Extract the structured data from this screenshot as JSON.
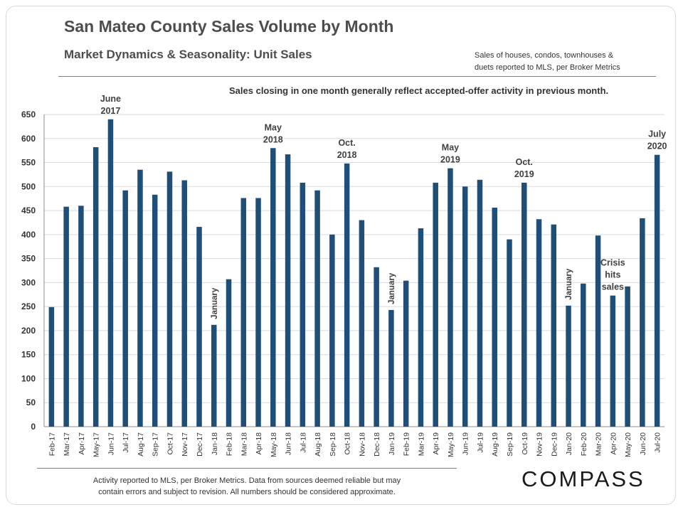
{
  "header": {
    "title": "San Mateo County Sales Volume by Month",
    "subtitle": "Market Dynamics & Seasonality: Unit Sales",
    "source_line1": "Sales of houses, condos, townhouses &",
    "source_line2": "duets reported to MLS, per Broker Metrics"
  },
  "insight_text": "Sales closing in one month generally reflect accepted-offer activity in previous month.",
  "footer": {
    "note_line1": "Activity reported to MLS, per Broker Metrics. Data from sources deemed reliable but may",
    "note_line2": "contain errors and subject to revision. All numbers should be considered approximate.",
    "logo": "COMPASS"
  },
  "colors": {
    "bar": "#1f4e79",
    "grid": "#d9d9d9",
    "axis_text": "#333333",
    "annotation_text": "#404040"
  },
  "chart_data": {
    "type": "bar",
    "title": "San Mateo County Sales Volume by Month",
    "ylim": [
      0,
      650
    ],
    "yticks": [
      0,
      50,
      100,
      150,
      200,
      250,
      300,
      350,
      400,
      450,
      500,
      550,
      600,
      650
    ],
    "grid": true,
    "categories": [
      "Feb-17",
      "Mar-17",
      "Apr-17",
      "May-17",
      "Jun-17",
      "Jul-17",
      "Aug-17",
      "Sep-17",
      "Oct-17",
      "Nov-17",
      "Dec-17",
      "Jan-18",
      "Feb-18",
      "Mar-18",
      "Apr-18",
      "May-18",
      "Jun-18",
      "Jul-18",
      "Aug-18",
      "Sep-18",
      "Oct-18",
      "Nov-18",
      "Dec-18",
      "Jan-19",
      "Feb-19",
      "Mar-19",
      "Apr-19",
      "May-19",
      "Jun-19",
      "Jul-19",
      "Aug-19",
      "Sep-19",
      "Oct-19",
      "Nov-19",
      "Dec-19",
      "Jan-20",
      "Feb-20",
      "Mar-20",
      "Apr-20",
      "May-20",
      "Jun-20",
      "Jul-20"
    ],
    "values": [
      249,
      458,
      460,
      582,
      640,
      492,
      535,
      483,
      531,
      513,
      416,
      212,
      307,
      476,
      476,
      580,
      567,
      508,
      492,
      400,
      548,
      430,
      332,
      243,
      304,
      413,
      508,
      538,
      500,
      514,
      456,
      390,
      508,
      432,
      421,
      252,
      298,
      398,
      273,
      292,
      434,
      566
    ],
    "annotations": [
      {
        "index": 4,
        "lines": [
          "June",
          "2017"
        ],
        "orient": "horizontal"
      },
      {
        "index": 11,
        "lines": [
          "January"
        ],
        "orient": "vertical"
      },
      {
        "index": 15,
        "lines": [
          "May",
          "2018"
        ],
        "orient": "horizontal"
      },
      {
        "index": 20,
        "lines": [
          "Oct.",
          "2018"
        ],
        "orient": "horizontal"
      },
      {
        "index": 23,
        "lines": [
          "January"
        ],
        "orient": "vertical"
      },
      {
        "index": 27,
        "lines": [
          "May",
          "2019"
        ],
        "orient": "horizontal"
      },
      {
        "index": 32,
        "lines": [
          "Oct.",
          "2019"
        ],
        "orient": "horizontal"
      },
      {
        "index": 35,
        "lines": [
          "January"
        ],
        "orient": "vertical"
      },
      {
        "index": 38,
        "lines": [
          "Crisis",
          "hits",
          "sales"
        ],
        "orient": "horizontal"
      },
      {
        "index": 41,
        "lines": [
          "July",
          "2020"
        ],
        "orient": "horizontal"
      }
    ]
  }
}
